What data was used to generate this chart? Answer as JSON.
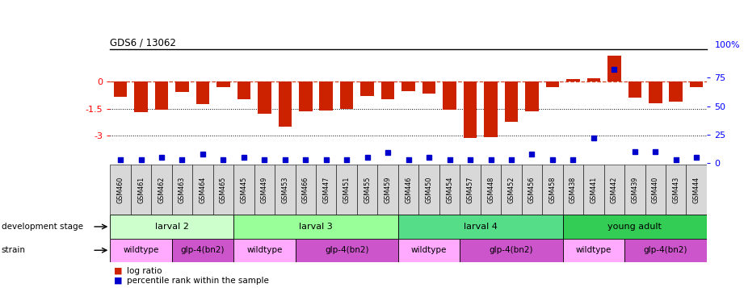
{
  "title": "GDS6 / 13062",
  "samples": [
    "GSM460",
    "GSM461",
    "GSM462",
    "GSM463",
    "GSM464",
    "GSM465",
    "GSM445",
    "GSM449",
    "GSM453",
    "GSM466",
    "GSM447",
    "GSM451",
    "GSM455",
    "GSM459",
    "GSM446",
    "GSM450",
    "GSM454",
    "GSM457",
    "GSM448",
    "GSM452",
    "GSM456",
    "GSM458",
    "GSM438",
    "GSM441",
    "GSM442",
    "GSM439",
    "GSM440",
    "GSM443",
    "GSM444"
  ],
  "log_ratios": [
    -0.85,
    -1.7,
    -1.55,
    -0.55,
    -1.25,
    -0.3,
    -0.95,
    -1.75,
    -2.5,
    -1.65,
    -1.6,
    -1.5,
    -0.8,
    -0.95,
    -0.5,
    -0.65,
    -1.55,
    -3.1,
    -3.05,
    -2.2,
    -1.65,
    -0.3,
    0.15,
    0.2,
    1.45,
    -0.9,
    -1.2,
    -1.1,
    -0.3
  ],
  "percentile_ranks": [
    3,
    3,
    5,
    3,
    8,
    3,
    5,
    3,
    3,
    3,
    3,
    3,
    5,
    9,
    3,
    5,
    3,
    3,
    3,
    3,
    8,
    3,
    3,
    22,
    82,
    10,
    10,
    3,
    5
  ],
  "ylim_left": [
    -4.5,
    1.8
  ],
  "ylim_right": [
    0,
    100
  ],
  "yticks_left": [
    0.0,
    -1.5,
    -3.0
  ],
  "yticks_left_labels": [
    "0",
    "-1.5",
    "-3"
  ],
  "yticks_right": [
    75,
    50,
    25,
    0
  ],
  "yticks_right_labels": [
    "75",
    "50",
    "25",
    "0"
  ],
  "dev_stages": [
    {
      "label": "larval 2",
      "start": 0,
      "end": 6,
      "color": "#ccffcc"
    },
    {
      "label": "larval 3",
      "start": 6,
      "end": 14,
      "color": "#99ff99"
    },
    {
      "label": "larval 4",
      "start": 14,
      "end": 22,
      "color": "#55dd88"
    },
    {
      "label": "young adult",
      "start": 22,
      "end": 29,
      "color": "#33cc55"
    }
  ],
  "strains": [
    {
      "label": "wildtype",
      "start": 0,
      "end": 3,
      "color": "#ffaaff"
    },
    {
      "label": "glp-4(bn2)",
      "start": 3,
      "end": 6,
      "color": "#cc55cc"
    },
    {
      "label": "wildtype",
      "start": 6,
      "end": 9,
      "color": "#ffaaff"
    },
    {
      "label": "glp-4(bn2)",
      "start": 9,
      "end": 14,
      "color": "#cc55cc"
    },
    {
      "label": "wildtype",
      "start": 14,
      "end": 17,
      "color": "#ffaaff"
    },
    {
      "label": "glp-4(bn2)",
      "start": 17,
      "end": 22,
      "color": "#cc55cc"
    },
    {
      "label": "wildtype",
      "start": 22,
      "end": 25,
      "color": "#ffaaff"
    },
    {
      "label": "glp-4(bn2)",
      "start": 25,
      "end": 29,
      "color": "#cc55cc"
    }
  ],
  "bar_color": "#cc2200",
  "dot_color": "#0000cc",
  "bg_color": "#ffffff",
  "label_bg": "#d8d8d8",
  "n_samples": 29
}
